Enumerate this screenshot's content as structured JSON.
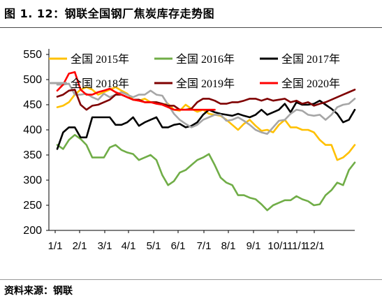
{
  "header": {
    "title": "图 1. 12：钢联全国钢厂焦炭库存走势图"
  },
  "footer": {
    "source": "资料来源：钢联"
  },
  "chart_data": {
    "type": "line",
    "title": "",
    "xlabel": "",
    "ylabel": "",
    "ylim": [
      200,
      550
    ],
    "yticks": [
      200,
      250,
      300,
      350,
      400,
      450,
      500,
      550
    ],
    "grid": false,
    "legend_position": "top",
    "x_ticks": [
      "1/1",
      "2/1",
      "3/1",
      "4/1",
      "5/1",
      "6/1",
      "7/1",
      "8/1",
      "9/1",
      "10/1",
      "11/1",
      "12/1"
    ],
    "x_tick_weeks": [
      0,
      4.4,
      8.6,
      13,
      17.3,
      21.7,
      26,
      30.4,
      34.7,
      39,
      40.3,
      42.2
    ],
    "x_note": "x values are week index within the year (0 = 1/1)",
    "series": [
      {
        "name": "全国 2015年",
        "color": "#ffc000",
        "x": [
          0,
          1,
          2,
          3,
          4,
          5,
          6,
          7,
          8,
          9,
          10,
          11,
          12,
          13,
          14,
          15,
          16,
          17,
          18,
          19,
          20,
          21,
          22,
          23,
          24,
          25,
          26,
          27,
          28,
          29,
          30,
          31,
          32,
          33,
          34,
          35,
          36,
          37,
          38,
          39,
          40,
          41,
          42,
          43,
          44,
          45,
          46,
          47,
          48,
          49,
          50,
          51
        ],
        "values": [
          445,
          448,
          455,
          470,
          480,
          485,
          480,
          470,
          475,
          480,
          485,
          478,
          472,
          460,
          458,
          462,
          455,
          455,
          450,
          452,
          440,
          438,
          450,
          442,
          436,
          440,
          432,
          430,
          428,
          420,
          410,
          400,
          412,
          420,
          408,
          398,
          400,
          395,
          410,
          420,
          405,
          405,
          400,
          400,
          395,
          380,
          370,
          370,
          340,
          345,
          355,
          370
        ]
      },
      {
        "name": "全国 2016年",
        "color": "#70ad47",
        "x": [
          0,
          1,
          2,
          3,
          4,
          5,
          6,
          7,
          8,
          9,
          10,
          11,
          12,
          13,
          14,
          15,
          16,
          17,
          18,
          19,
          20,
          21,
          22,
          23,
          24,
          25,
          26,
          27,
          28,
          29,
          30,
          31,
          32,
          33,
          34,
          35,
          36,
          37,
          38,
          39,
          40,
          41,
          42,
          43,
          44,
          45,
          46,
          47,
          48,
          49,
          50,
          51
        ],
        "values": [
          370,
          362,
          380,
          390,
          382,
          370,
          345,
          345,
          345,
          365,
          370,
          360,
          355,
          352,
          340,
          345,
          350,
          340,
          310,
          290,
          298,
          315,
          320,
          330,
          340,
          345,
          352,
          330,
          305,
          295,
          290,
          270,
          270,
          265,
          262,
          252,
          240,
          250,
          255,
          260,
          260,
          268,
          262,
          258,
          250,
          252,
          270,
          280,
          295,
          290,
          320,
          335
        ]
      },
      {
        "name": "全国 2017年",
        "color": "#000000",
        "x": [
          0,
          1,
          2,
          3,
          4,
          5,
          6,
          7,
          8,
          9,
          10,
          11,
          12,
          13,
          14,
          15,
          16,
          17,
          18,
          19,
          20,
          21,
          22,
          23,
          24,
          25,
          26,
          27,
          28,
          29,
          30,
          31,
          32,
          33,
          34,
          35,
          36,
          37,
          38,
          39,
          40,
          41,
          42,
          43,
          44,
          45,
          46,
          47,
          48,
          49,
          50,
          51
        ],
        "values": [
          362,
          395,
          405,
          405,
          385,
          385,
          425,
          425,
          425,
          425,
          410,
          410,
          415,
          425,
          408,
          415,
          420,
          425,
          405,
          405,
          410,
          412,
          405,
          408,
          415,
          430,
          440,
          435,
          432,
          430,
          428,
          432,
          428,
          425,
          430,
          440,
          430,
          435,
          440,
          452,
          435,
          455,
          450,
          450,
          452,
          458,
          450,
          442,
          432,
          415,
          420,
          440
        ]
      },
      {
        "name": "全国 2018年",
        "color": "#a6a6a6",
        "x": [
          0,
          1,
          2,
          3,
          4,
          5,
          6,
          7,
          8,
          9,
          10,
          11,
          12,
          13,
          14,
          15,
          16,
          17,
          18,
          19,
          20,
          21,
          22,
          23,
          24,
          25,
          26,
          27,
          28,
          29,
          30,
          31,
          32,
          33,
          34,
          35,
          36,
          37,
          38,
          39,
          40,
          41,
          42,
          43,
          44,
          45,
          46,
          47,
          48,
          49,
          50,
          51
        ],
        "values": [
          490,
          490,
          492,
          470,
          470,
          472,
          465,
          460,
          472,
          465,
          470,
          475,
          470,
          465,
          470,
          470,
          478,
          470,
          468,
          450,
          432,
          420,
          412,
          405,
          410,
          420,
          425,
          430,
          430,
          418,
          420,
          425,
          418,
          410,
          400,
          395,
          392,
          405,
          418,
          420,
          432,
          440,
          438,
          430,
          428,
          430,
          420,
          430,
          445,
          450,
          452,
          462
        ]
      },
      {
        "name": "全国 2019年",
        "color": "#7f0000",
        "x": [
          0,
          1,
          2,
          3,
          4,
          5,
          6,
          7,
          8,
          9,
          10,
          11,
          12,
          13,
          14,
          15,
          16,
          17,
          18,
          19,
          20,
          21,
          22,
          23,
          24,
          25,
          26,
          27,
          28,
          29,
          30,
          31,
          32,
          33,
          34,
          35,
          36,
          37,
          38,
          39,
          40,
          41,
          42,
          43,
          44,
          45,
          46,
          47,
          48,
          49,
          50,
          51
        ],
        "values": [
          466,
          470,
          478,
          480,
          450,
          440,
          448,
          450,
          455,
          460,
          470,
          470,
          465,
          460,
          460,
          455,
          455,
          455,
          452,
          448,
          448,
          440,
          440,
          442,
          455,
          462,
          462,
          458,
          452,
          452,
          455,
          455,
          458,
          462,
          462,
          458,
          462,
          458,
          460,
          462,
          455,
          458,
          452,
          455,
          448,
          452,
          455,
          460,
          465,
          470,
          475,
          480
        ]
      },
      {
        "name": "全国 2020年",
        "color": "#ff0000",
        "x": [
          0,
          1,
          2,
          3,
          4,
          5,
          6,
          7,
          8,
          9,
          10,
          11,
          12,
          13,
          14,
          15,
          16,
          17,
          18,
          19,
          20,
          21,
          22,
          23,
          24,
          25,
          26,
          27
        ],
        "values": [
          478,
          490,
          512,
          515,
          480,
          470,
          470,
          475,
          478,
          482,
          475,
          470,
          465,
          460,
          458,
          455,
          455,
          452,
          450,
          445,
          440,
          440,
          440,
          440,
          440,
          440,
          440,
          440
        ]
      }
    ]
  }
}
